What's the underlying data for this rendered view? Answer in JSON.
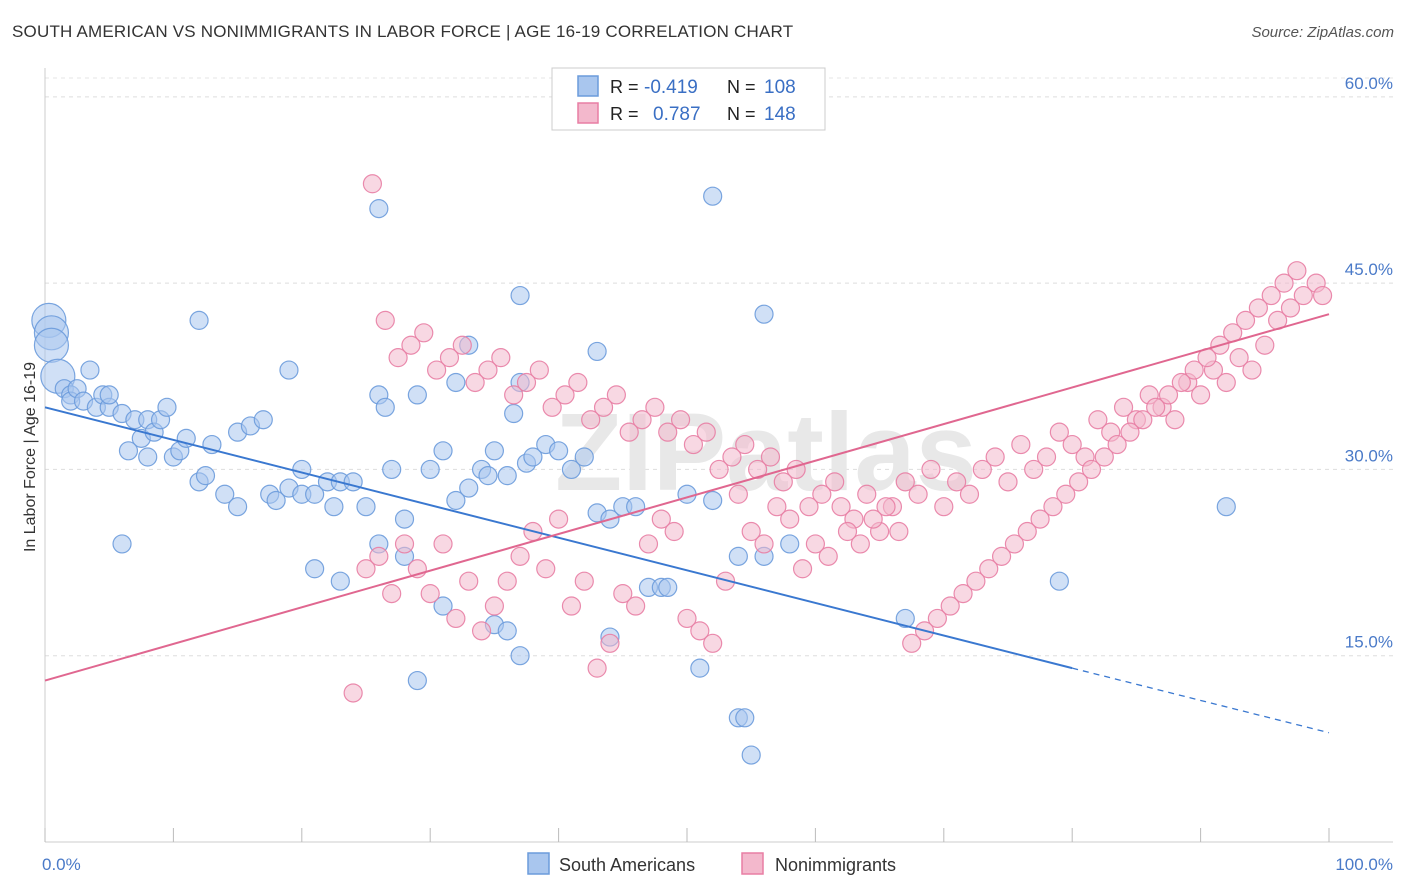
{
  "title": "SOUTH AMERICAN VS NONIMMIGRANTS IN LABOR FORCE | AGE 16-19 CORRELATION CHART",
  "source": "Source: ZipAtlas.com",
  "colors": {
    "blue": "#6b9bdc",
    "blue_fill": "#a9c6ee",
    "pink": "#e87ea4",
    "pink_fill": "#f3b8cc",
    "blue_line": "#3a78d0",
    "pink_line": "#e06790"
  },
  "chart_data": {
    "type": "scatter",
    "xlabel": "",
    "ylabel": "In Labor Force | Age 16-19",
    "xlim": [
      0,
      100
    ],
    "ylim": [
      0,
      62
    ],
    "x_tick_labels": [
      "0.0%",
      "100.0%"
    ],
    "y_ticks": [
      15,
      30,
      45,
      60
    ],
    "y_tick_labels": [
      "15.0%",
      "30.0%",
      "45.0%",
      "60.0%"
    ],
    "watermark": "ZIPatlas",
    "legend": [
      {
        "name": "South Americans",
        "r_label": "R =",
        "r": "-0.419",
        "n_label": "N =",
        "n": "108"
      },
      {
        "name": "Nonimmigrants",
        "r_label": "R =",
        "r": "0.787",
        "n_label": "N =",
        "n": "148"
      }
    ],
    "series": [
      {
        "name": "South Americans",
        "trend": {
          "x0": 0,
          "y0": 35.0,
          "x1": 80,
          "y1": 14.0,
          "dash_to_x": 100,
          "dash_to_y": 8.8
        },
        "points": [
          [
            0.3,
            42
          ],
          [
            0.5,
            41
          ],
          [
            0.5,
            40
          ],
          [
            1,
            37.5
          ],
          [
            1.5,
            36.5
          ],
          [
            2,
            36
          ],
          [
            2,
            35.5
          ],
          [
            2.5,
            36.5
          ],
          [
            3,
            35.5
          ],
          [
            3.5,
            38
          ],
          [
            4,
            35
          ],
          [
            4.5,
            36
          ],
          [
            5,
            35
          ],
          [
            5,
            36
          ],
          [
            6,
            34.5
          ],
          [
            6.5,
            31.5
          ],
          [
            7,
            34
          ],
          [
            7.5,
            32.5
          ],
          [
            8,
            34
          ],
          [
            8,
            31
          ],
          [
            8.5,
            33
          ],
          [
            9,
            34
          ],
          [
            9.5,
            35
          ],
          [
            10,
            31
          ],
          [
            10.5,
            31.5
          ],
          [
            11,
            32.5
          ],
          [
            12,
            29
          ],
          [
            12.5,
            29.5
          ],
          [
            13,
            32
          ],
          [
            14,
            28
          ],
          [
            15,
            27
          ],
          [
            15,
            33
          ],
          [
            16,
            33.5
          ],
          [
            17,
            34
          ],
          [
            17.5,
            28
          ],
          [
            18,
            27.5
          ],
          [
            19,
            28.5
          ],
          [
            20,
            28
          ],
          [
            20,
            30
          ],
          [
            21,
            28
          ],
          [
            22,
            29
          ],
          [
            22.5,
            27
          ],
          [
            23,
            29
          ],
          [
            24,
            29
          ],
          [
            25,
            27
          ],
          [
            26,
            36
          ],
          [
            26.5,
            35
          ],
          [
            27,
            30
          ],
          [
            28,
            26
          ],
          [
            29,
            36
          ],
          [
            30,
            30
          ],
          [
            31,
            31.5
          ],
          [
            32,
            27.5
          ],
          [
            33,
            28.5
          ],
          [
            34,
            30
          ],
          [
            34.5,
            29.5
          ],
          [
            35,
            31.5
          ],
          [
            36,
            29.5
          ],
          [
            36.5,
            34.5
          ],
          [
            37.5,
            30.5
          ],
          [
            38,
            31
          ],
          [
            39,
            32
          ],
          [
            40,
            31.5
          ],
          [
            41,
            30
          ],
          [
            42,
            31
          ],
          [
            43,
            26.5
          ],
          [
            44,
            26
          ],
          [
            45,
            27
          ],
          [
            46,
            27
          ],
          [
            47,
            20.5
          ],
          [
            48,
            20.5
          ],
          [
            48.5,
            20.5
          ],
          [
            50,
            28
          ],
          [
            52,
            27.5
          ],
          [
            54,
            23
          ],
          [
            56,
            23
          ],
          [
            58,
            24
          ],
          [
            12,
            42
          ],
          [
            19,
            38
          ],
          [
            26,
            51
          ],
          [
            33,
            40
          ],
          [
            37,
            44
          ],
          [
            43,
            39.5
          ],
          [
            52,
            52
          ],
          [
            56,
            42.5
          ],
          [
            32,
            37
          ],
          [
            37,
            37
          ],
          [
            26,
            24
          ],
          [
            21,
            22
          ],
          [
            23,
            21
          ],
          [
            28,
            23
          ],
          [
            31,
            19
          ],
          [
            35,
            17.5
          ],
          [
            36,
            17
          ],
          [
            29,
            13
          ],
          [
            37,
            15
          ],
          [
            44,
            16.5
          ],
          [
            51,
            14
          ],
          [
            54,
            10
          ],
          [
            54.5,
            10
          ],
          [
            55,
            7
          ],
          [
            67,
            18
          ],
          [
            79,
            21
          ],
          [
            92,
            27
          ],
          [
            6,
            24
          ]
        ]
      },
      {
        "name": "Nonimmigrants",
        "trend": {
          "x0": 0,
          "y0": 13.0,
          "x1": 100,
          "y1": 42.5
        },
        "points": [
          [
            24,
            12
          ],
          [
            25,
            22
          ],
          [
            26,
            23
          ],
          [
            27,
            20
          ],
          [
            28,
            24
          ],
          [
            29,
            22
          ],
          [
            30,
            20
          ],
          [
            31,
            24
          ],
          [
            32,
            18
          ],
          [
            33,
            21
          ],
          [
            34,
            17
          ],
          [
            35,
            19
          ],
          [
            36,
            21
          ],
          [
            37,
            23
          ],
          [
            38,
            25
          ],
          [
            39,
            22
          ],
          [
            40,
            26
          ],
          [
            41,
            19
          ],
          [
            42,
            21
          ],
          [
            43,
            14
          ],
          [
            44,
            16
          ],
          [
            45,
            20
          ],
          [
            46,
            19
          ],
          [
            47,
            24
          ],
          [
            48,
            26
          ],
          [
            49,
            25
          ],
          [
            50,
            18
          ],
          [
            51,
            17
          ],
          [
            52,
            16
          ],
          [
            53,
            21
          ],
          [
            54,
            28
          ],
          [
            55,
            25
          ],
          [
            56,
            24
          ],
          [
            57,
            27
          ],
          [
            58,
            26
          ],
          [
            59,
            22
          ],
          [
            60,
            24
          ],
          [
            61,
            23
          ],
          [
            62,
            27
          ],
          [
            63,
            26
          ],
          [
            64,
            28
          ],
          [
            65,
            25
          ],
          [
            66,
            27
          ],
          [
            67,
            29
          ],
          [
            68,
            28
          ],
          [
            69,
            30
          ],
          [
            70,
            27
          ],
          [
            71,
            29
          ],
          [
            72,
            28
          ],
          [
            73,
            30
          ],
          [
            74,
            31
          ],
          [
            75,
            29
          ],
          [
            76,
            32
          ],
          [
            77,
            30
          ],
          [
            78,
            31
          ],
          [
            79,
            33
          ],
          [
            80,
            32
          ],
          [
            81,
            31
          ],
          [
            82,
            34
          ],
          [
            83,
            33
          ],
          [
            84,
            35
          ],
          [
            85,
            34
          ],
          [
            86,
            36
          ],
          [
            87,
            35
          ],
          [
            88,
            34
          ],
          [
            89,
            37
          ],
          [
            90,
            36
          ],
          [
            91,
            38
          ],
          [
            92,
            37
          ],
          [
            93,
            39
          ],
          [
            94,
            38
          ],
          [
            95,
            40
          ],
          [
            96,
            42
          ],
          [
            97,
            43
          ],
          [
            98,
            44
          ],
          [
            99,
            45
          ],
          [
            99.5,
            44
          ],
          [
            97.5,
            46
          ],
          [
            96.5,
            45
          ],
          [
            95.5,
            44
          ],
          [
            94.5,
            43
          ],
          [
            93.5,
            42
          ],
          [
            92.5,
            41
          ],
          [
            91.5,
            40
          ],
          [
            90.5,
            39
          ],
          [
            89.5,
            38
          ],
          [
            88.5,
            37
          ],
          [
            87.5,
            36
          ],
          [
            86.5,
            35
          ],
          [
            85.5,
            34
          ],
          [
            84.5,
            33
          ],
          [
            83.5,
            32
          ],
          [
            82.5,
            31
          ],
          [
            81.5,
            30
          ],
          [
            80.5,
            29
          ],
          [
            79.5,
            28
          ],
          [
            78.5,
            27
          ],
          [
            77.5,
            26
          ],
          [
            76.5,
            25
          ],
          [
            75.5,
            24
          ],
          [
            74.5,
            23
          ],
          [
            73.5,
            22
          ],
          [
            72.5,
            21
          ],
          [
            71.5,
            20
          ],
          [
            70.5,
            19
          ],
          [
            69.5,
            18
          ],
          [
            68.5,
            17
          ],
          [
            67.5,
            16
          ],
          [
            66.5,
            25
          ],
          [
            65.5,
            27
          ],
          [
            64.5,
            26
          ],
          [
            63.5,
            24
          ],
          [
            62.5,
            25
          ],
          [
            61.5,
            29
          ],
          [
            60.5,
            28
          ],
          [
            59.5,
            27
          ],
          [
            58.5,
            30
          ],
          [
            57.5,
            29
          ],
          [
            56.5,
            31
          ],
          [
            55.5,
            30
          ],
          [
            54.5,
            32
          ],
          [
            53.5,
            31
          ],
          [
            52.5,
            30
          ],
          [
            51.5,
            33
          ],
          [
            50.5,
            32
          ],
          [
            49.5,
            34
          ],
          [
            48.5,
            33
          ],
          [
            47.5,
            35
          ],
          [
            46.5,
            34
          ],
          [
            45.5,
            33
          ],
          [
            44.5,
            36
          ],
          [
            43.5,
            35
          ],
          [
            42.5,
            34
          ],
          [
            41.5,
            37
          ],
          [
            40.5,
            36
          ],
          [
            39.5,
            35
          ],
          [
            38.5,
            38
          ],
          [
            37.5,
            37
          ],
          [
            36.5,
            36
          ],
          [
            35.5,
            39
          ],
          [
            34.5,
            38
          ],
          [
            33.5,
            37
          ],
          [
            32.5,
            40
          ],
          [
            31.5,
            39
          ],
          [
            30.5,
            38
          ],
          [
            29.5,
            41
          ],
          [
            28.5,
            40
          ],
          [
            27.5,
            39
          ],
          [
            26.5,
            42
          ],
          [
            25.5,
            53
          ]
        ]
      }
    ]
  }
}
